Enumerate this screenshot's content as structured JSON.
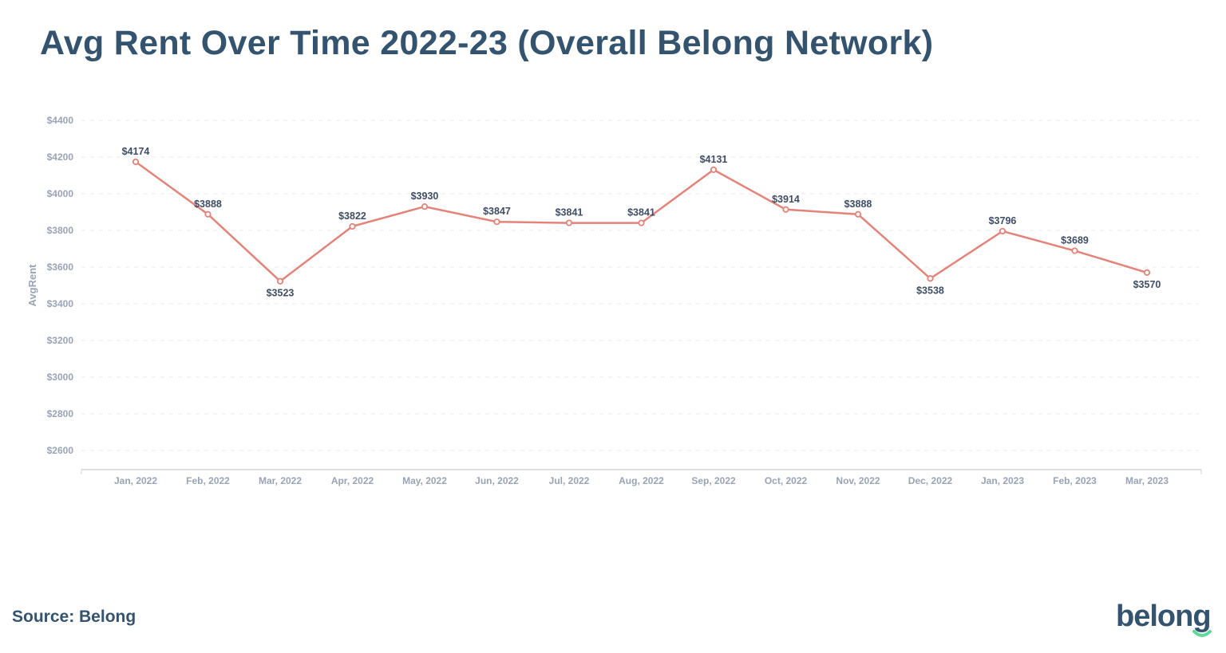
{
  "title": "Avg Rent Over Time 2022-23 (Overall Belong Network)",
  "source": "Source: Belong",
  "logo": "belong",
  "colors": {
    "title": "#33536e",
    "line": "#e3837a",
    "logo_smile": "#5fd89a"
  },
  "chart_data": {
    "type": "line",
    "title": "Avg Rent Over Time 2022-23 (Overall Belong Network)",
    "xlabel": "",
    "ylabel": "AvgRent",
    "categories": [
      "Jan, 2022",
      "Feb, 2022",
      "Mar, 2022",
      "Apr, 2022",
      "May, 2022",
      "Jun, 2022",
      "Jul, 2022",
      "Aug, 2022",
      "Sep, 2022",
      "Oct, 2022",
      "Nov, 2022",
      "Dec, 2022",
      "Jan, 2023",
      "Feb, 2023",
      "Mar, 2023"
    ],
    "series": [
      {
        "values": [
          4174,
          3888,
          3523,
          3822,
          3930,
          3847,
          3841,
          3841,
          4131,
          3914,
          3888,
          3538,
          3796,
          3689,
          3570
        ]
      }
    ],
    "data_labels": [
      "$4174",
      "$3888",
      "$3523",
      "$3822",
      "$3930",
      "$3847",
      "$3841",
      "$3841",
      "$4131",
      "$3914",
      "$3888",
      "$3538",
      "$3796",
      "$3689",
      "$3570"
    ],
    "yticks": [
      "$2600",
      "$2800",
      "$3000",
      "$3200",
      "$3400",
      "$3600",
      "$3800",
      "$4000",
      "$4200",
      "$4400"
    ],
    "ytick_values": [
      2600,
      2800,
      3000,
      3200,
      3400,
      3600,
      3800,
      4000,
      4200,
      4400
    ],
    "ylim": [
      2500,
      4400
    ],
    "grid": true,
    "legend": "none"
  }
}
